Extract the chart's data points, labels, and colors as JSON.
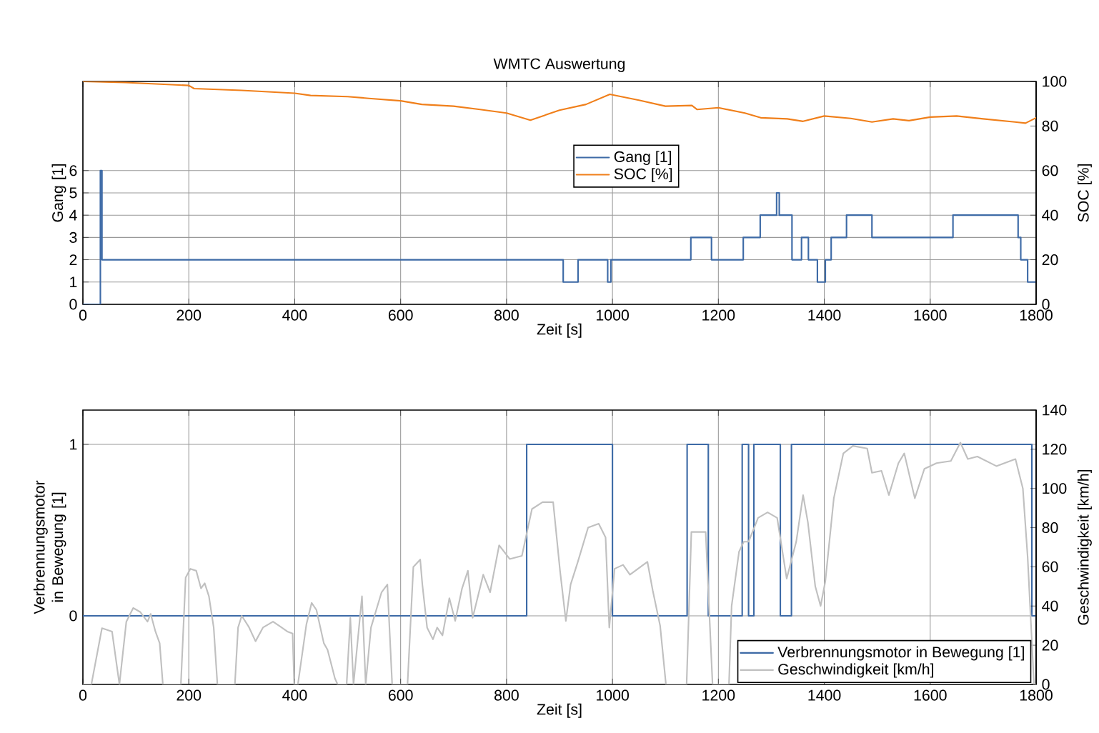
{
  "chart_data": [
    {
      "type": "line",
      "title": "WMTC Auswertung",
      "xlabel": "Zeit [s]",
      "ylabel": "Gang [1]",
      "y2label": "SOC [%]",
      "xlim": [
        0,
        1800
      ],
      "xticks": [
        0,
        200,
        400,
        600,
        800,
        1000,
        1200,
        1400,
        1600,
        1800
      ],
      "ylim": [
        0,
        10
      ],
      "yticks": [
        0,
        1,
        2,
        3,
        4,
        5,
        6
      ],
      "y2lim": [
        0,
        100
      ],
      "y2ticks": [
        0,
        20,
        40,
        60,
        80,
        100
      ],
      "grid": true,
      "legend": "center",
      "series": [
        {
          "name": "Gang [1]",
          "type": "step",
          "color": "#3d6aa6",
          "x": [
            0,
            33,
            36,
            907,
            935,
            991,
            997,
            1148,
            1187,
            1247,
            1279,
            1310,
            1315,
            1339,
            1357,
            1370,
            1387,
            1402,
            1413,
            1442,
            1490,
            1643,
            1766,
            1771,
            1784,
            1800
          ],
          "values": [
            0,
            6,
            2,
            1,
            2,
            1,
            2,
            3,
            2,
            3,
            4,
            5,
            4,
            2,
            3,
            2,
            1,
            2,
            3,
            4,
            3,
            4,
            3,
            2,
            1,
            1
          ]
        },
        {
          "name": "SOC [%]",
          "type": "line",
          "axis": "y2",
          "color": "#f07f1a",
          "x": [
            0,
            80,
            200,
            210,
            300,
            400,
            430,
            500,
            540,
            600,
            640,
            700,
            750,
            800,
            845,
            900,
            950,
            995,
            1050,
            1100,
            1150,
            1160,
            1200,
            1250,
            1280,
            1330,
            1360,
            1400,
            1450,
            1490,
            1530,
            1560,
            1600,
            1650,
            1700,
            1760,
            1780,
            1800
          ],
          "values": [
            100,
            99.5,
            98.2,
            96.8,
            96,
            94.7,
            93.7,
            93.2,
            92.4,
            91.3,
            89.7,
            88.9,
            87.4,
            85.8,
            82.6,
            87.1,
            89.7,
            94.2,
            91.6,
            88.9,
            89.2,
            87.4,
            88.2,
            85.8,
            83.7,
            83.2,
            82.1,
            84.5,
            83.4,
            81.8,
            83.2,
            82.4,
            84,
            84.5,
            83.2,
            81.8,
            81.3,
            83.7
          ]
        }
      ]
    },
    {
      "type": "line",
      "xlabel": "Zeit [s]",
      "ylabel": "Verbrennungsmotor in Bewegung [1]",
      "y2label": "Geschwindigkeit [km/h]",
      "xlim": [
        0,
        1800
      ],
      "xticks": [
        0,
        200,
        400,
        600,
        800,
        1000,
        1200,
        1400,
        1600,
        1800
      ],
      "ylim": [
        -0.4,
        1.2
      ],
      "yticks": [
        0,
        1
      ],
      "y2lim": [
        0,
        140
      ],
      "y2ticks": [
        0,
        20,
        40,
        60,
        80,
        100,
        120,
        140
      ],
      "grid": true,
      "legend": "bottom right",
      "series": [
        {
          "name": "Verbrennungsmotor in Bewegung [1]",
          "type": "step",
          "color": "#3d6aa6",
          "x": [
            0,
            838,
            1000,
            1141,
            1181,
            1245,
            1257,
            1267,
            1317,
            1338,
            1792,
            1800
          ],
          "values": [
            0,
            1,
            0,
            1,
            0,
            1,
            0,
            1,
            0,
            1,
            0,
            0
          ]
        },
        {
          "name": "Geschwindigkeit [km/h]",
          "type": "line",
          "axis": "y2",
          "color": "#c0c0c0",
          "x": [
            0,
            16,
            36,
            55,
            69,
            82,
            95,
            108,
            122,
            128,
            137,
            145,
            151,
            185,
            194,
            203,
            214,
            223,
            230,
            238,
            247,
            254,
            287,
            293,
            300,
            313,
            326,
            340,
            359,
            373,
            386,
            396,
            399,
            406,
            422,
            432,
            441,
            455,
            462,
            476,
            481,
            498,
            505,
            511,
            527,
            534,
            544,
            564,
            575,
            584,
            613,
            624,
            637,
            641,
            650,
            661,
            669,
            679,
            692,
            703,
            716,
            727,
            736,
            756,
            769,
            786,
            806,
            829,
            848,
            868,
            888,
            901,
            912,
            921,
            934,
            954,
            974,
            987,
            994,
            1004,
            1020,
            1033,
            1066,
            1076,
            1090,
            1101,
            1140,
            1149,
            1176,
            1189,
            1220,
            1225,
            1239,
            1248,
            1257,
            1275,
            1293,
            1311,
            1329,
            1347,
            1360,
            1369,
            1383,
            1393,
            1402,
            1418,
            1436,
            1454,
            1481,
            1490,
            1508,
            1522,
            1540,
            1551,
            1571,
            1589,
            1612,
            1639,
            1657,
            1671,
            1689,
            1725,
            1761,
            1775,
            1784,
            1796,
            1800
          ],
          "values": [
            0,
            0,
            28.7,
            27,
            0,
            32,
            39,
            37,
            32,
            36,
            27,
            21,
            0,
            0,
            54.5,
            59,
            58,
            49,
            51.6,
            45,
            29,
            0,
            0,
            29,
            35,
            29.5,
            22,
            29,
            32,
            29.5,
            27,
            26,
            0,
            0,
            30.6,
            41.6,
            38,
            21,
            17.7,
            3,
            0,
            0,
            34,
            0,
            45,
            0,
            29,
            47,
            51,
            0,
            0,
            60,
            63.7,
            51,
            29,
            23,
            29,
            25,
            44,
            32.4,
            49,
            58,
            34,
            56,
            47,
            71,
            64,
            65.6,
            89.5,
            93,
            93,
            58,
            32.4,
            51,
            62,
            80,
            82,
            75,
            29,
            59,
            61,
            56,
            62.6,
            48,
            30,
            0,
            0,
            77.8,
            77.8,
            0,
            0,
            40,
            67.7,
            72.8,
            72.8,
            85,
            87.8,
            85,
            54,
            72.8,
            96.6,
            82.8,
            50,
            40,
            52.7,
            95,
            117.9,
            121.7,
            120.4,
            108,
            109,
            96.6,
            112.9,
            117.9,
            95,
            110,
            112.9,
            114,
            123.4,
            115,
            116.3,
            111.4,
            115,
            100,
            65,
            0,
            0
          ]
        }
      ]
    }
  ]
}
